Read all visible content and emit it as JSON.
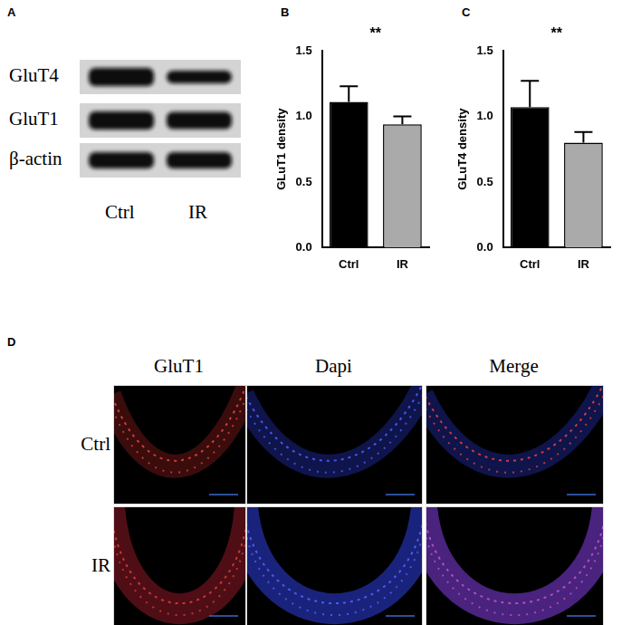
{
  "blot": {
    "panel": "A",
    "rows": [
      "GluT4",
      "GluT1",
      "β-actin"
    ],
    "lanes": [
      "Ctrl",
      "IR"
    ]
  },
  "chart_data": [
    {
      "type": "bar",
      "panel": "B",
      "y_label": "GLuT1 density",
      "categories": [
        "Ctrl",
        "IR"
      ],
      "values": [
        1.11,
        0.94
      ],
      "errors": [
        0.12,
        0.06
      ],
      "colors": [
        "#000000",
        "#aaaaaa"
      ],
      "ylim": [
        0,
        1.5
      ],
      "yticks": [
        {
          "value": 0,
          "label": "0.0"
        },
        0.5,
        {
          "value": 1,
          "label": "1.0"
        },
        1.5
      ],
      "grid": false,
      "annotations": [
        "**"
      ]
    },
    {
      "type": "bar",
      "panel": "C",
      "y_label": "GLuT4 density",
      "categories": [
        "Ctrl",
        "IR"
      ],
      "values": [
        1.07,
        0.8
      ],
      "errors": [
        0.2,
        0.08
      ],
      "colors": [
        "#000000",
        "#aaaaaa"
      ],
      "ylim": [
        0,
        1.5
      ],
      "yticks": [
        {
          "value": 0,
          "label": "0.0"
        },
        0.5,
        {
          "value": 1,
          "label": "1.0"
        },
        1.5
      ],
      "grid": false,
      "annotations": [
        "**"
      ]
    }
  ],
  "images": {
    "panel": "D",
    "columns": [
      "GluT1",
      "Dapi",
      "Merge"
    ],
    "rows": [
      "Ctrl",
      "IR"
    ]
  }
}
